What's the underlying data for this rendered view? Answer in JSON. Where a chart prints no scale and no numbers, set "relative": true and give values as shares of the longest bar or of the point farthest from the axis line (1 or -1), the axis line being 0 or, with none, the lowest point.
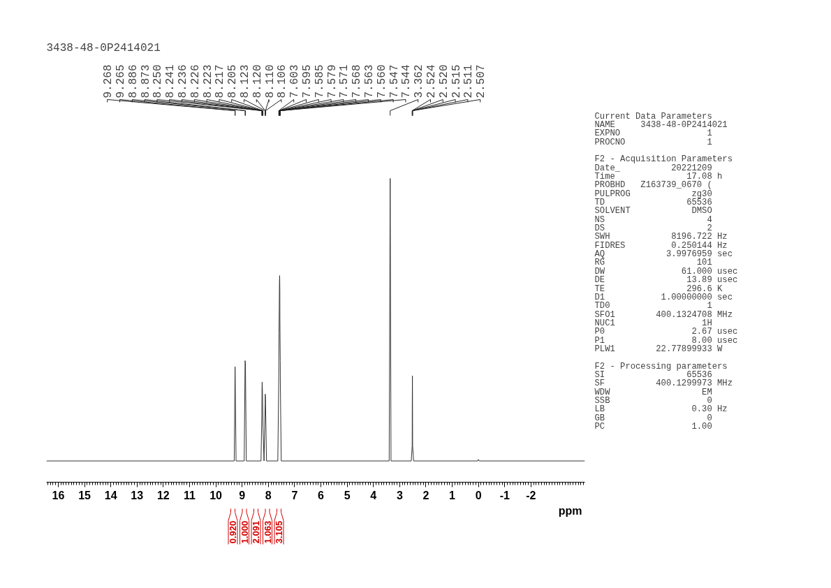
{
  "chart_data": [
    {
      "type": "line",
      "title": "3438-48-0P2414021",
      "xlabel": "ppm",
      "relative": true,
      "xlim": [
        16.45,
        -4.05
      ],
      "xticks": [
        16,
        15,
        14,
        13,
        12,
        11,
        10,
        9,
        8,
        7,
        6,
        5,
        4,
        3,
        2,
        1,
        0,
        -1,
        -2
      ],
      "series": [
        {
          "color": "#333333",
          "x": [
            16.45,
            9.3,
            9.268,
            9.265,
            9.23,
            8.92,
            8.886,
            8.873,
            8.84,
            8.28,
            8.25,
            8.241,
            8.236,
            8.226,
            8.223,
            8.217,
            8.205,
            8.165,
            8.123,
            8.12,
            8.11,
            8.106,
            8.07,
            7.64,
            7.603,
            7.595,
            7.585,
            7.579,
            7.571,
            7.568,
            7.563,
            7.56,
            7.547,
            7.544,
            7.51,
            3.4,
            3.362,
            3.33,
            2.56,
            2.524,
            2.52,
            2.515,
            2.511,
            2.507,
            2.47,
            0.03,
            0.0,
            -0.03,
            -4.05
          ],
          "values": [
            0.07,
            0.07,
            0.38,
            0.37,
            0.07,
            0.07,
            0.4,
            0.39,
            0.07,
            0.07,
            0.22,
            0.31,
            0.33,
            0.3,
            0.29,
            0.26,
            0.18,
            0.07,
            0.26,
            0.29,
            0.28,
            0.25,
            0.07,
            0.07,
            0.35,
            0.49,
            0.58,
            0.65,
            0.68,
            0.67,
            0.63,
            0.54,
            0.4,
            0.33,
            0.07,
            0.07,
            1,
            0.07,
            0.07,
            0.12,
            0.27,
            0.35,
            0.27,
            0.12,
            0.07,
            0.07,
            0.075,
            0.07,
            0.07
          ]
        }
      ],
      "annotations": [
        {
          "text": "9.268",
          "x": 9.268
        },
        {
          "text": "9.265",
          "x": 9.265
        },
        {
          "text": "8.886",
          "x": 8.886
        },
        {
          "text": "8.873",
          "x": 8.873
        },
        {
          "text": "8.250",
          "x": 8.25
        },
        {
          "text": "8.241",
          "x": 8.241
        },
        {
          "text": "8.236",
          "x": 8.236
        },
        {
          "text": "8.226",
          "x": 8.226
        },
        {
          "text": "8.223",
          "x": 8.223
        },
        {
          "text": "8.217",
          "x": 8.217
        },
        {
          "text": "8.205",
          "x": 8.205
        },
        {
          "text": "8.123",
          "x": 8.123
        },
        {
          "text": "8.120",
          "x": 8.12
        },
        {
          "text": "8.110",
          "x": 8.11
        },
        {
          "text": "8.106",
          "x": 8.106
        },
        {
          "text": "7.603",
          "x": 7.603
        },
        {
          "text": "7.595",
          "x": 7.595
        },
        {
          "text": "7.585",
          "x": 7.585
        },
        {
          "text": "7.579",
          "x": 7.579
        },
        {
          "text": "7.571",
          "x": 7.571
        },
        {
          "text": "7.568",
          "x": 7.568
        },
        {
          "text": "7.563",
          "x": 7.563
        },
        {
          "text": "7.560",
          "x": 7.56
        },
        {
          "text": "7.547",
          "x": 7.547
        },
        {
          "text": "7.544",
          "x": 7.544
        },
        {
          "text": "3.362",
          "x": 3.362
        },
        {
          "text": "2.524",
          "x": 2.524
        },
        {
          "text": "2.520",
          "x": 2.52
        },
        {
          "text": "2.515",
          "x": 2.515
        },
        {
          "text": "2.511",
          "x": 2.511
        },
        {
          "text": "2.507",
          "x": 2.507
        },
        "0.920",
        "1.000",
        "2.091",
        "1.063",
        "3.105"
      ]
    },
    {
      "type": "other",
      "title": "Current Data Parameters",
      "annotations": [
        "NAME  3438-48-0P2414021",
        "EXPNO  1",
        "PROCNO  1",
        "F2 - Acquisition Parameters",
        "Date_  20221209",
        "Time  17.08  h",
        "PROBHD  Z163739_0670 (",
        "PULPROG  zg30",
        "TD  65536",
        "SOLVENT  DMSO",
        "NS  4",
        "DS  2",
        "SWH  8196.722  Hz",
        "FIDRES  0.250144  Hz",
        "AQ  3.9976959  sec",
        "RG  101",
        "DW  61.000  usec",
        "DE  13.89  usec",
        "TE  296.6  K",
        "D1  1.00000000  sec",
        "TD0  1",
        "SFO1  400.1324708  MHz",
        "NUC1  1H",
        "P0  2.67  usec",
        "P1  8.00  usec",
        "PLW1  22.77899933  W",
        "F2 - Processing parameters",
        "SI  65536",
        "SF  400.1299973  MHz",
        "WDW  EM",
        "SSB  0",
        "LB  0.30  Hz",
        "GB  0",
        "PC  1.00"
      ]
    }
  ]
}
